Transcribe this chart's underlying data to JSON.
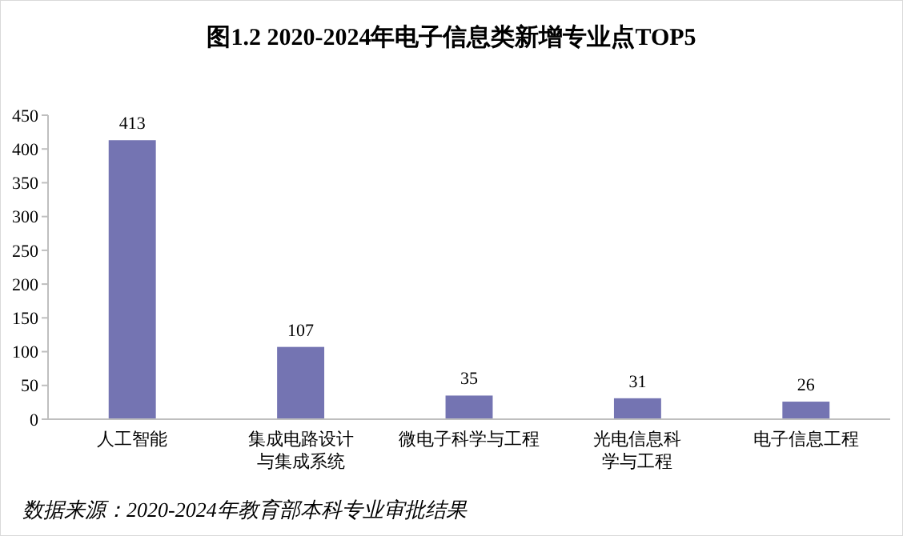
{
  "chart_data": {
    "type": "bar",
    "title": "图1.2  2020-2024年电子信息类新增专业点TOP5",
    "categories": [
      "人工智能",
      "集成电路设计与集成系统",
      "微电子科学与工程",
      "光电信息科学与工程",
      "电子信息工程"
    ],
    "values": [
      413,
      107,
      35,
      31,
      26
    ],
    "color": "#7474b2",
    "ylim": [
      0,
      450
    ],
    "yticks": [
      0,
      50,
      100,
      150,
      200,
      250,
      300,
      350,
      400,
      450
    ],
    "grid": false,
    "data_labels": true,
    "annotations": [
      "数据来源：2020-2024年教育部本科专业审批结果"
    ]
  }
}
